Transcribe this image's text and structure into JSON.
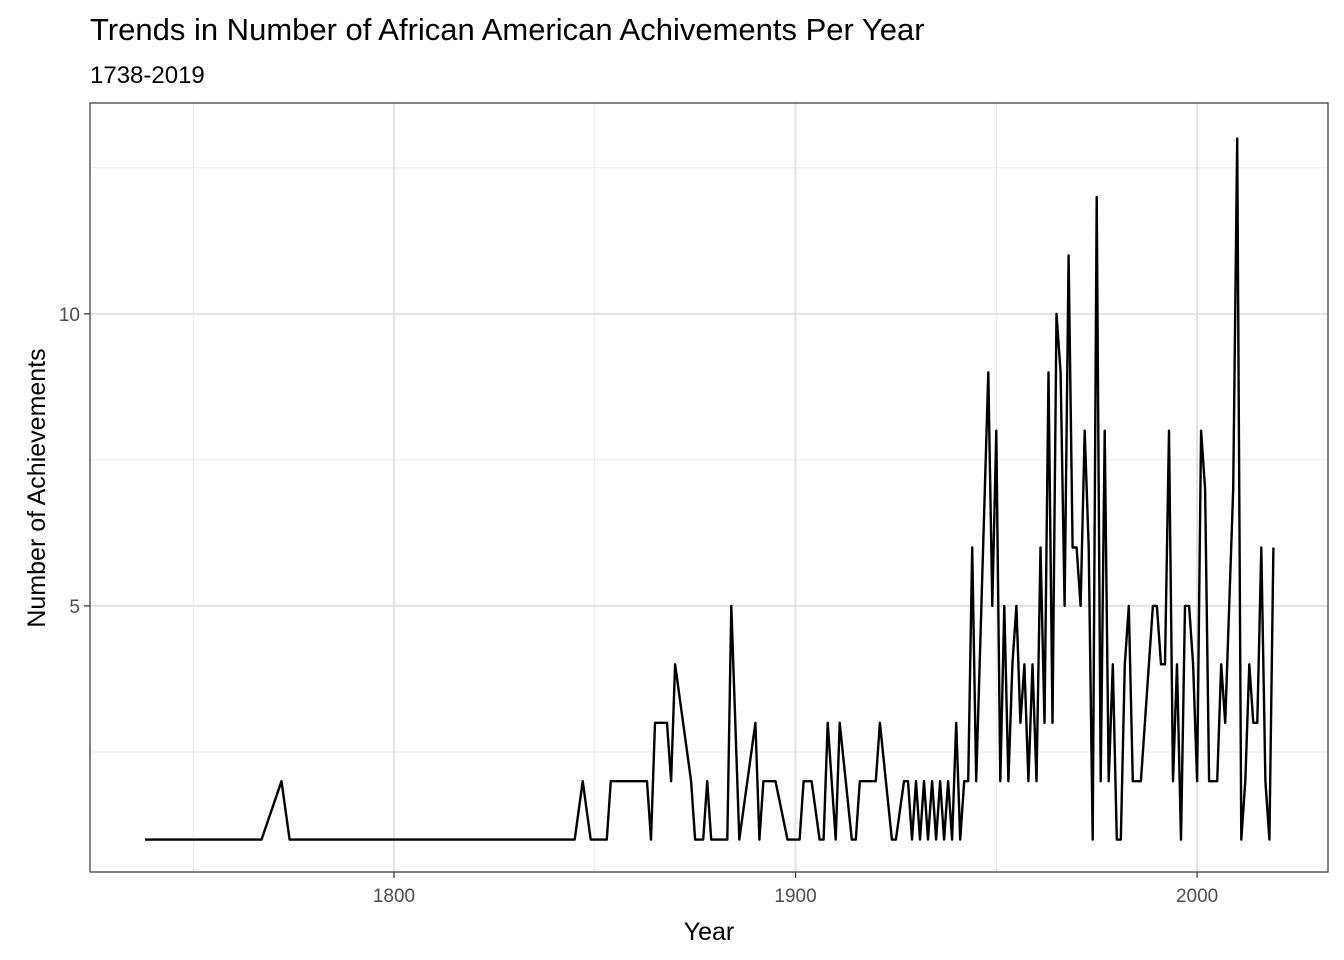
{
  "chart_data": {
    "type": "line",
    "title": "Trends in Number of African American Achivements Per Year",
    "subtitle": "1738-2019",
    "xlabel": "Year",
    "ylabel": "Number of Achievements",
    "xlim": [
      1724.3,
      2032.6
    ],
    "ylim": [
      0.445,
      13.61
    ],
    "x_ticks": [
      1800,
      1900,
      2000
    ],
    "x_tick_labels": [
      "1800",
      "1900",
      "2000"
    ],
    "x_minor": [
      1750,
      1850,
      1950
    ],
    "y_ticks": [
      5,
      10
    ],
    "y_tick_labels": [
      "5",
      "10"
    ],
    "y_minor": [
      2.5,
      7.5,
      12.5
    ],
    "grid": true,
    "series": [
      {
        "name": "achievements",
        "color": "#000000",
        "x": [
          1738,
          1767,
          1772,
          1774,
          1845,
          1847,
          1849,
          1853,
          1854,
          1863,
          1864,
          1865,
          1868,
          1869,
          1870,
          1874,
          1875,
          1877,
          1878,
          1879,
          1883,
          1884,
          1886,
          1890,
          1891,
          1892,
          1895,
          1898,
          1901,
          1902,
          1904,
          1906,
          1907,
          1908,
          1910,
          1911,
          1914,
          1915,
          1916,
          1920,
          1921,
          1924,
          1925,
          1927,
          1928,
          1929,
          1930,
          1931,
          1932,
          1933,
          1934,
          1935,
          1936,
          1937,
          1938,
          1939,
          1940,
          1941,
          1942,
          1943,
          1944,
          1945,
          1948,
          1949,
          1950,
          1951,
          1952,
          1953,
          1954,
          1955,
          1956,
          1957,
          1958,
          1959,
          1960,
          1961,
          1962,
          1963,
          1964,
          1965,
          1966,
          1967,
          1968,
          1969,
          1970,
          1971,
          1972,
          1973,
          1974,
          1975,
          1976,
          1977,
          1978,
          1979,
          1980,
          1981,
          1982,
          1983,
          1984,
          1986,
          1989,
          1990,
          1991,
          1992,
          1993,
          1994,
          1995,
          1996,
          1997,
          1998,
          1999,
          2000,
          2001,
          2002,
          2003,
          2005,
          2006,
          2007,
          2009,
          2010,
          2011,
          2012,
          2013,
          2014,
          2015,
          2016,
          2017,
          2018,
          2019
        ],
        "y": [
          1,
          1,
          2,
          1,
          1,
          2,
          1,
          1,
          2,
          2,
          1,
          3,
          3,
          2,
          4,
          2,
          1,
          1,
          2,
          1,
          1,
          5,
          1,
          3,
          1,
          2,
          2,
          1,
          1,
          2,
          2,
          1,
          1,
          3,
          1,
          3,
          1,
          1,
          2,
          2,
          3,
          1,
          1,
          2,
          2,
          1,
          2,
          1,
          2,
          1,
          2,
          1,
          2,
          1,
          2,
          1,
          3,
          1,
          2,
          2,
          6,
          2,
          9,
          5,
          8,
          2,
          5,
          2,
          4,
          5,
          3,
          4,
          2,
          4,
          2,
          6,
          3,
          9,
          3,
          10,
          9,
          5,
          11,
          6,
          6,
          5,
          8,
          6,
          1,
          12,
          2,
          8,
          2,
          4,
          1,
          1,
          4,
          5,
          2,
          2,
          5,
          5,
          4,
          4,
          8,
          2,
          4,
          1,
          5,
          5,
          4,
          2,
          8,
          7,
          2,
          2,
          4,
          3,
          7,
          13,
          1,
          2,
          4,
          3,
          3,
          6,
          2,
          1,
          6
        ]
      }
    ]
  }
}
